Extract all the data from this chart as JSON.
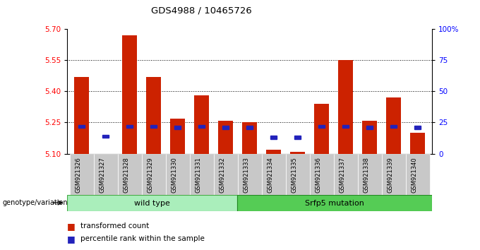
{
  "title": "GDS4988 / 10465726",
  "samples": [
    "GSM921326",
    "GSM921327",
    "GSM921328",
    "GSM921329",
    "GSM921330",
    "GSM921331",
    "GSM921332",
    "GSM921333",
    "GSM921334",
    "GSM921335",
    "GSM921336",
    "GSM921337",
    "GSM921338",
    "GSM921339",
    "GSM921340"
  ],
  "transformed_count": [
    5.47,
    5.1,
    5.67,
    5.47,
    5.27,
    5.38,
    5.26,
    5.25,
    5.12,
    5.11,
    5.34,
    5.55,
    5.26,
    5.37,
    5.2
  ],
  "percentile_rank": [
    22,
    14,
    22,
    22,
    21,
    22,
    21,
    21,
    13,
    13,
    22,
    22,
    21,
    22,
    21
  ],
  "wild_type_count": 7,
  "srfp5_count": 8,
  "ymin": 5.1,
  "ymax": 5.7,
  "yticks": [
    5.1,
    5.25,
    5.4,
    5.55,
    5.7
  ],
  "right_yticks": [
    0,
    25,
    50,
    75,
    100
  ],
  "bar_color": "#cc2200",
  "blue_color": "#2222bb",
  "wild_type_color": "#aaeebb",
  "srfp5_color": "#55cc55",
  "label_transformed": "transformed count",
  "label_percentile": "percentile rank within the sample",
  "label_genotype": "genotype/variation",
  "label_wild": "wild type",
  "label_srfp5": "Srfp5 mutation"
}
